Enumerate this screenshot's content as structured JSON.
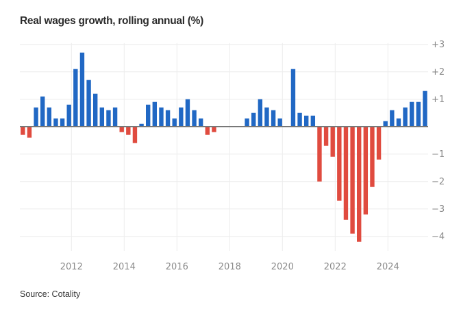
{
  "title": "Real wages growth, rolling annual (%)",
  "source": "Source: Cotality",
  "colors": {
    "positive": "#2168c4",
    "negative": "#e04b3f",
    "grid": "#ececec",
    "baseline": "#777777",
    "tick": "#8a8a8a"
  },
  "chart_data": {
    "type": "bar",
    "title": "Real wages growth, rolling annual (%)",
    "xlabel": "",
    "ylabel": "",
    "frequency": "quarterly",
    "x_start": "2010 Q1",
    "x_end": "2025 Q2",
    "categories": [
      "2010Q1",
      "2010Q2",
      "2010Q3",
      "2010Q4",
      "2011Q1",
      "2011Q2",
      "2011Q3",
      "2011Q4",
      "2012Q1",
      "2012Q2",
      "2012Q3",
      "2012Q4",
      "2013Q1",
      "2013Q2",
      "2013Q3",
      "2013Q4",
      "2014Q1",
      "2014Q2",
      "2014Q3",
      "2014Q4",
      "2015Q1",
      "2015Q2",
      "2015Q3",
      "2015Q4",
      "2016Q1",
      "2016Q2",
      "2016Q3",
      "2016Q4",
      "2017Q1",
      "2017Q2",
      "2017Q3",
      "2017Q4",
      "2018Q1",
      "2018Q2",
      "2018Q3",
      "2018Q4",
      "2019Q1",
      "2019Q2",
      "2019Q3",
      "2019Q4",
      "2020Q1",
      "2020Q2",
      "2020Q3",
      "2020Q4",
      "2021Q1",
      "2021Q2",
      "2021Q3",
      "2021Q4",
      "2022Q1",
      "2022Q2",
      "2022Q3",
      "2022Q4",
      "2023Q1",
      "2023Q2",
      "2023Q3",
      "2023Q4",
      "2024Q1",
      "2024Q2",
      "2024Q3",
      "2024Q4",
      "2025Q1",
      "2025Q2"
    ],
    "values": [
      -0.3,
      -0.4,
      0.7,
      1.1,
      0.7,
      0.3,
      0.3,
      0.8,
      2.1,
      2.7,
      1.7,
      1.2,
      0.7,
      0.6,
      0.7,
      -0.2,
      -0.3,
      -0.6,
      0.1,
      0.8,
      0.9,
      0.7,
      0.6,
      0.3,
      0.7,
      1.0,
      0.6,
      0.3,
      -0.3,
      -0.2,
      null,
      null,
      null,
      null,
      0.3,
      0.5,
      1.0,
      0.7,
      0.6,
      0.3,
      null,
      2.1,
      0.5,
      0.4,
      0.4,
      -2.0,
      -0.7,
      -1.1,
      -2.7,
      -3.4,
      -3.9,
      -4.2,
      -3.2,
      -2.2,
      -1.2,
      0.2,
      0.6,
      0.3,
      0.7,
      0.9,
      0.9,
      1.3
    ],
    "ylim": [
      -4,
      3
    ],
    "yticks": [
      3,
      2,
      1,
      -1,
      -2,
      -3,
      -4
    ],
    "ytick_labels": [
      "+3",
      "+2",
      "+1",
      "−1",
      "−2",
      "−3",
      "−4"
    ],
    "xticks": [
      2012,
      2014,
      2016,
      2018,
      2020,
      2022,
      2024
    ],
    "xtick_labels": [
      "2012",
      "2014",
      "2016",
      "2018",
      "2020",
      "2022",
      "2024"
    ],
    "grid": true,
    "y_axis_side": "right",
    "legend": "none"
  }
}
